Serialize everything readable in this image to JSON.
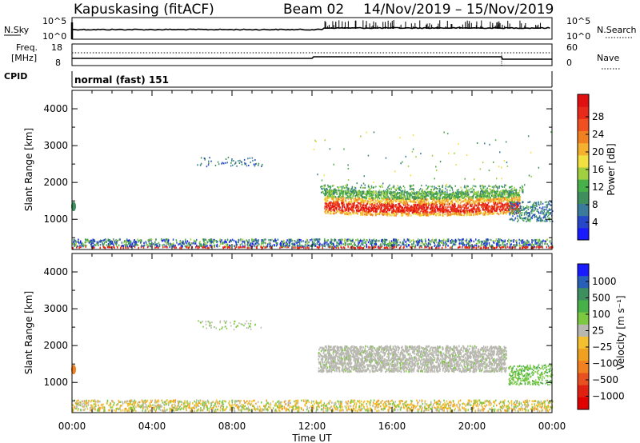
{
  "header": {
    "station": "Kapuskasing (fitACF)",
    "beam": "Beam 02",
    "date_range": "14/Nov/2019 – 15/Nov/2019"
  },
  "top_panels": {
    "nsky_label": "N.Sky",
    "nsky_ticks": [
      "10^5",
      "10^0"
    ],
    "nsearch_label": "N.Search",
    "nsearch_ticks": [
      "10^5",
      "10^0"
    ],
    "freq_label_1": "Freq.",
    "freq_label_2": "[MHz]",
    "freq_ticks": [
      "18",
      "8"
    ],
    "nave_label": "Nave",
    "nave_ticks": [
      "60",
      "0"
    ],
    "cpid_label": "CPID",
    "cpid_value": "normal (fast) 151"
  },
  "chart_data": [
    {
      "type": "heatmap",
      "ylabel": "Slant Range [km]",
      "xlabel": "Time UT",
      "ylim": [
        180,
        4500
      ],
      "yticks": [
        "4000",
        "3000",
        "2000",
        "1000"
      ],
      "xticks": [
        "00:00",
        "04:00",
        "08:00",
        "12:00",
        "16:00",
        "20:00",
        "00:00"
      ],
      "colorbar": {
        "label": "Power [dB]",
        "tick_labels": [
          "28",
          "24",
          "20",
          "16",
          "12",
          "8",
          "4"
        ],
        "colors": [
          "#1a1aff",
          "#2648c8",
          "#3a7a9a",
          "#3f8f5c",
          "#48b048",
          "#a0d040",
          "#f0e040",
          "#f5b030",
          "#f08020",
          "#f05020",
          "#e82a1a",
          "#e01010"
        ]
      },
      "features": [
        {
          "name": "ground scatter band",
          "time_start_h": 0,
          "time_end_h": 24,
          "range_km": [
            200,
            420
          ]
        },
        {
          "name": "ionospheric echo band",
          "time_start_h": 12.6,
          "time_end_h": 22.4,
          "range_km": [
            1150,
            1700
          ],
          "peak_power_db": 28
        },
        {
          "name": "late echo",
          "time_start_h": 21.8,
          "time_end_h": 24,
          "range_km": [
            900,
            1500
          ]
        },
        {
          "name": "sparse high-range echoes",
          "time_start_h": 6,
          "time_end_h": 9.5,
          "range_km": [
            2450,
            2750
          ]
        }
      ]
    },
    {
      "type": "heatmap",
      "ylabel": "Slant Range [km]",
      "xlabel": "Time UT",
      "ylim": [
        180,
        4500
      ],
      "yticks": [
        "4000",
        "3000",
        "2000",
        "1000"
      ],
      "xticks": [
        "00:00",
        "04:00",
        "08:00",
        "12:00",
        "16:00",
        "20:00",
        "00:00"
      ],
      "colorbar": {
        "label": "Velocity [m s⁻¹]",
        "tick_labels": [
          "1000",
          "500",
          "100",
          "25",
          "−25",
          "−100",
          "−500",
          "−1000"
        ],
        "colors": [
          "#1a1aff",
          "#2860b8",
          "#3d8f60",
          "#48b048",
          "#7cc840",
          "#b8b8b0",
          "#f5c030",
          "#f0a020",
          "#f08020",
          "#e85020",
          "#e02010",
          "#e00000"
        ]
      },
      "features": [
        {
          "name": "ground scatter (low velocity)",
          "time_start_h": 12.3,
          "time_end_h": 21.6,
          "range_km": [
            1300,
            2000
          ],
          "velocity_ms": [
            -25,
            25
          ]
        },
        {
          "name": "near-range echoes",
          "time_start_h": 0,
          "time_end_h": 24,
          "range_km": [
            200,
            500
          ]
        },
        {
          "name": "late positive velocity echo",
          "time_start_h": 21.8,
          "time_end_h": 24,
          "range_km": [
            900,
            1500
          ]
        }
      ]
    }
  ]
}
